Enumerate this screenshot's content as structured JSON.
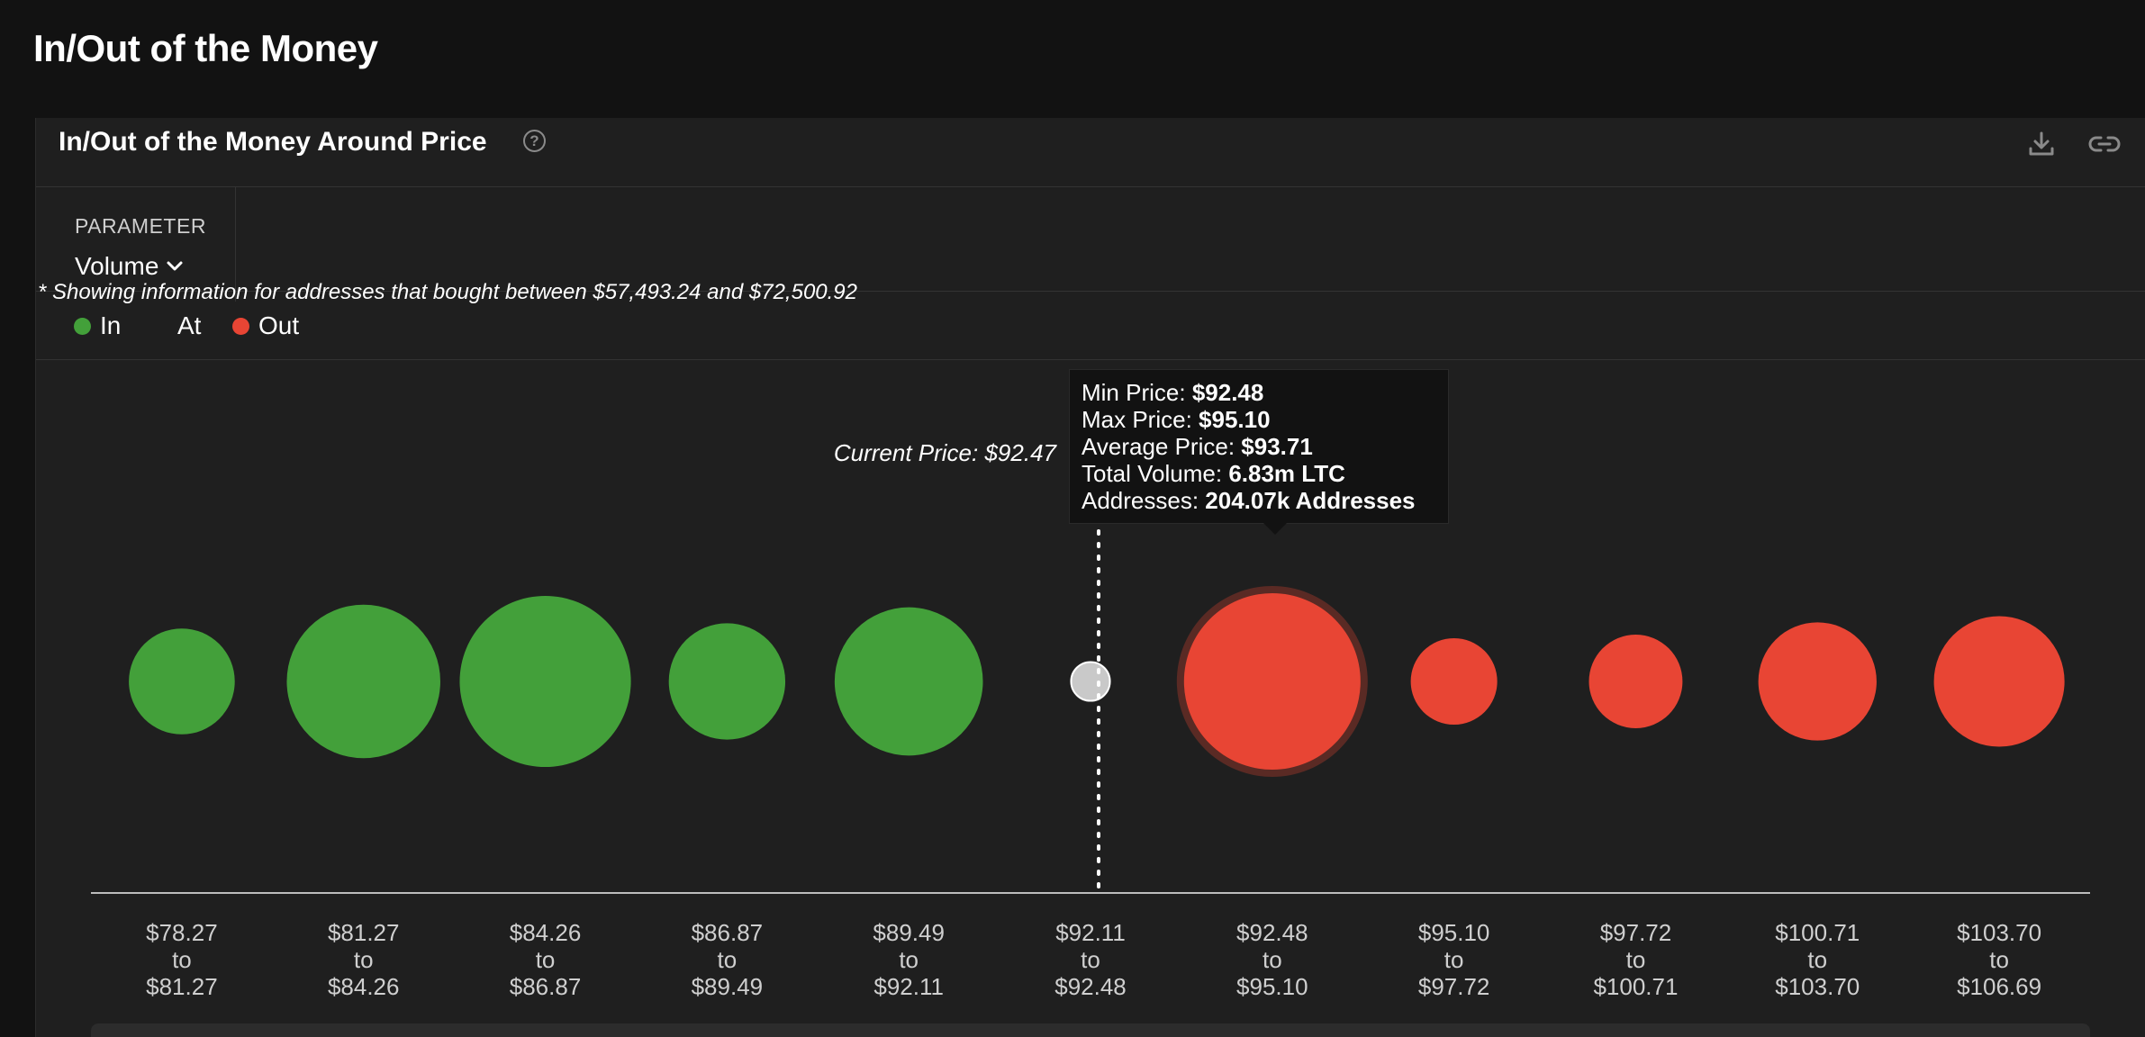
{
  "page": {
    "title": "In/Out of the Money"
  },
  "panel": {
    "title": "In/Out of the Money Around Price",
    "help_icon": "question-circle-icon",
    "actions": [
      "download-icon",
      "link-icon"
    ]
  },
  "parameter": {
    "label": "PARAMETER",
    "value": "Volume"
  },
  "legend": [
    {
      "label": "In",
      "color": "#43a03a"
    },
    {
      "label": "At",
      "color": ""
    },
    {
      "label": "Out",
      "color": "#e84534"
    }
  ],
  "note": "* Showing information for addresses that bought between $57,493.24 and $72,500.92",
  "current_price_label": "Current Price: $92.47",
  "tooltip": {
    "min_label": "Min Price: ",
    "min_value": "$92.48",
    "max_label": "Max Price: ",
    "max_value": "$95.10",
    "avg_label": "Average Price: ",
    "avg_value": "$93.71",
    "vol_label": "Total Volume: ",
    "vol_value": "6.83m LTC",
    "addr_label": "Addresses: ",
    "addr_value": "204.07k Addresses"
  },
  "chart_data": {
    "type": "scatter",
    "encoding": "bubble size = volume",
    "current_price": 92.47,
    "highlighted_index": 6,
    "categories": [
      {
        "from": "$78.27",
        "to": "$81.27",
        "status": "in",
        "relative_size": 0.6
      },
      {
        "from": "$81.27",
        "to": "$84.26",
        "status": "in",
        "relative_size": 0.87
      },
      {
        "from": "$84.26",
        "to": "$86.87",
        "status": "in",
        "relative_size": 0.97
      },
      {
        "from": "$86.87",
        "to": "$89.49",
        "status": "in",
        "relative_size": 0.66
      },
      {
        "from": "$89.49",
        "to": "$92.11",
        "status": "in",
        "relative_size": 0.84
      },
      {
        "from": "$92.11",
        "to": "$92.48",
        "status": "at",
        "relative_size": 0.22
      },
      {
        "from": "$92.48",
        "to": "$95.10",
        "status": "out",
        "relative_size": 1.0
      },
      {
        "from": "$95.10",
        "to": "$97.72",
        "status": "out",
        "relative_size": 0.49
      },
      {
        "from": "$97.72",
        "to": "$100.71",
        "status": "out",
        "relative_size": 0.53
      },
      {
        "from": "$100.71",
        "to": "$103.70",
        "status": "out",
        "relative_size": 0.67
      },
      {
        "from": "$103.70",
        "to": "$106.69",
        "status": "out",
        "relative_size": 0.74
      }
    ],
    "connector": "to",
    "colors": {
      "in": "#43a03a",
      "at": "#c9c9c9",
      "out": "#e84534"
    }
  }
}
